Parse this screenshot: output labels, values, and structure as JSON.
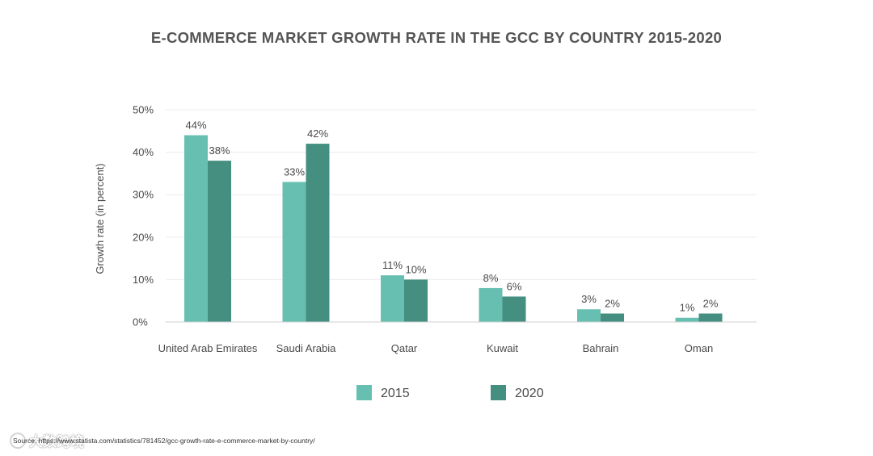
{
  "chart_data": {
    "type": "bar",
    "title": "E-COMMERCE MARKET GROWTH RATE IN THE GCC BY COUNTRY 2015-2020",
    "ylabel": "Growth rate (in percent)",
    "xlabel": "",
    "categories": [
      "United Arab Emirates",
      "Saudi Arabia",
      "Qatar",
      "Kuwait",
      "Bahrain",
      "Oman"
    ],
    "series": [
      {
        "name": "2015",
        "values": [
          44,
          33,
          11,
          8,
          3,
          1
        ],
        "labels": [
          "44%",
          "33%",
          "11%",
          "8%",
          "3%",
          "1%"
        ],
        "color": "#67bfb2"
      },
      {
        "name": "2020",
        "values": [
          38,
          42,
          10,
          6,
          2,
          2
        ],
        "labels": [
          "38%",
          "42%",
          "10%",
          "6%",
          "2%",
          "2%"
        ],
        "color": "#448f80"
      }
    ],
    "ylim": [
      0,
      50
    ],
    "yticks": [
      0,
      10,
      20,
      30,
      40,
      50
    ],
    "ytick_labels": [
      "0%",
      "10%",
      "20%",
      "30%",
      "40%",
      "50%"
    ],
    "grid": true,
    "legend_position": "bottom-center"
  },
  "source": {
    "text": "Source: https://www.statista.com/statistics/781452/gcc-growth-rate-e-commerce-market-by-country/"
  },
  "watermark": {
    "text": "大数跨境"
  },
  "colors": {
    "grid": "#ececec",
    "axis": "#d0d0d0",
    "text": "#4a4a4a"
  }
}
